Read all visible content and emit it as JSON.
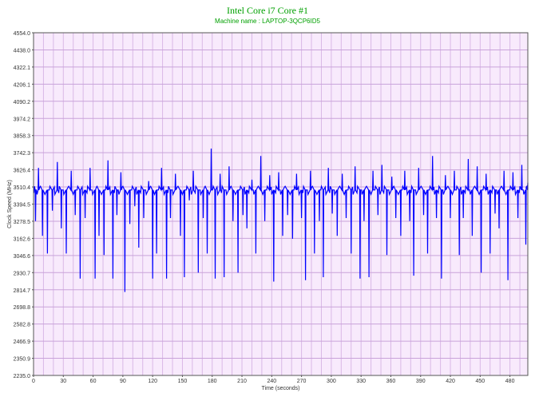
{
  "chart_data": {
    "type": "line",
    "title": "Intel Core i7 Core #1",
    "subtitle": "Machine name : LAPTOP-3QCP6ID5",
    "xlabel": "Time (seconds)",
    "ylabel": "Clock Speed (MHz)",
    "xlim": [
      0,
      498
    ],
    "ylim": [
      2235.0,
      4554.0
    ],
    "x_ticks": [
      "0",
      "30",
      "60",
      "90",
      "120",
      "150",
      "180",
      "210",
      "240",
      "270",
      "300",
      "330",
      "360",
      "390",
      "420",
      "450",
      "480"
    ],
    "y_ticks": [
      "2235.0",
      "2350.9",
      "2466.9",
      "2582.8",
      "2698.8",
      "2814.7",
      "2930.7",
      "3046.6",
      "3162.6",
      "3278.5",
      "3394.5",
      "3510.4",
      "3626.4",
      "3742.3",
      "3858.3",
      "3974.2",
      "4090.2",
      "4206.1",
      "4322.1",
      "4438.0",
      "4554.0"
    ],
    "grid": true,
    "series": [
      {
        "name": "",
        "color": "#0000ff",
        "baseline": 3490,
        "dips": [
          {
            "x": 2,
            "y": 3280
          },
          {
            "x": 5,
            "y": 3640
          },
          {
            "x": 9,
            "y": 3180
          },
          {
            "x": 14,
            "y": 3060
          },
          {
            "x": 19,
            "y": 3350
          },
          {
            "x": 24,
            "y": 3680
          },
          {
            "x": 28,
            "y": 3230
          },
          {
            "x": 33,
            "y": 3060
          },
          {
            "x": 38,
            "y": 3620
          },
          {
            "x": 42,
            "y": 3320
          },
          {
            "x": 47,
            "y": 2890
          },
          {
            "x": 52,
            "y": 3300
          },
          {
            "x": 57,
            "y": 3640
          },
          {
            "x": 62,
            "y": 2890
          },
          {
            "x": 66,
            "y": 3180
          },
          {
            "x": 71,
            "y": 3050
          },
          {
            "x": 75,
            "y": 3690
          },
          {
            "x": 80,
            "y": 2890
          },
          {
            "x": 84,
            "y": 3320
          },
          {
            "x": 88,
            "y": 3610
          },
          {
            "x": 92,
            "y": 2800
          },
          {
            "x": 97,
            "y": 3260
          },
          {
            "x": 102,
            "y": 3380
          },
          {
            "x": 106,
            "y": 3100
          },
          {
            "x": 111,
            "y": 3300
          },
          {
            "x": 116,
            "y": 3550
          },
          {
            "x": 120,
            "y": 2890
          },
          {
            "x": 124,
            "y": 3060
          },
          {
            "x": 129,
            "y": 3640
          },
          {
            "x": 134,
            "y": 2890
          },
          {
            "x": 138,
            "y": 3300
          },
          {
            "x": 143,
            "y": 3600
          },
          {
            "x": 148,
            "y": 3180
          },
          {
            "x": 152,
            "y": 2900
          },
          {
            "x": 157,
            "y": 3420
          },
          {
            "x": 161,
            "y": 3620
          },
          {
            "x": 166,
            "y": 2930
          },
          {
            "x": 171,
            "y": 3300
          },
          {
            "x": 175,
            "y": 3060
          },
          {
            "x": 179,
            "y": 3770
          },
          {
            "x": 183,
            "y": 2890
          },
          {
            "x": 188,
            "y": 3600
          },
          {
            "x": 192,
            "y": 2900
          },
          {
            "x": 197,
            "y": 3650
          },
          {
            "x": 201,
            "y": 3280
          },
          {
            "x": 206,
            "y": 2930
          },
          {
            "x": 211,
            "y": 3320
          },
          {
            "x": 215,
            "y": 3230
          },
          {
            "x": 220,
            "y": 3560
          },
          {
            "x": 224,
            "y": 3060
          },
          {
            "x": 229,
            "y": 3720
          },
          {
            "x": 233,
            "y": 3280
          },
          {
            "x": 238,
            "y": 3590
          },
          {
            "x": 242,
            "y": 2870
          },
          {
            "x": 247,
            "y": 3610
          },
          {
            "x": 251,
            "y": 3180
          },
          {
            "x": 256,
            "y": 3320
          },
          {
            "x": 261,
            "y": 3160
          },
          {
            "x": 265,
            "y": 3600
          },
          {
            "x": 270,
            "y": 3300
          },
          {
            "x": 274,
            "y": 2880
          },
          {
            "x": 279,
            "y": 3620
          },
          {
            "x": 283,
            "y": 3060
          },
          {
            "x": 288,
            "y": 3280
          },
          {
            "x": 292,
            "y": 2900
          },
          {
            "x": 297,
            "y": 3640
          },
          {
            "x": 301,
            "y": 3330
          },
          {
            "x": 306,
            "y": 3180
          },
          {
            "x": 311,
            "y": 3600
          },
          {
            "x": 315,
            "y": 3300
          },
          {
            "x": 320,
            "y": 3060
          },
          {
            "x": 324,
            "y": 3650
          },
          {
            "x": 329,
            "y": 2890
          },
          {
            "x": 333,
            "y": 3280
          },
          {
            "x": 338,
            "y": 2900
          },
          {
            "x": 342,
            "y": 3620
          },
          {
            "x": 347,
            "y": 3320
          },
          {
            "x": 351,
            "y": 3660
          },
          {
            "x": 356,
            "y": 3050
          },
          {
            "x": 361,
            "y": 3580
          },
          {
            "x": 365,
            "y": 3300
          },
          {
            "x": 370,
            "y": 3180
          },
          {
            "x": 374,
            "y": 3620
          },
          {
            "x": 379,
            "y": 3280
          },
          {
            "x": 383,
            "y": 2910
          },
          {
            "x": 388,
            "y": 3640
          },
          {
            "x": 393,
            "y": 3320
          },
          {
            "x": 397,
            "y": 3060
          },
          {
            "x": 402,
            "y": 3720
          },
          {
            "x": 406,
            "y": 3300
          },
          {
            "x": 411,
            "y": 2890
          },
          {
            "x": 415,
            "y": 3590
          },
          {
            "x": 420,
            "y": 3300
          },
          {
            "x": 424,
            "y": 3620
          },
          {
            "x": 429,
            "y": 3050
          },
          {
            "x": 433,
            "y": 3300
          },
          {
            "x": 438,
            "y": 3700
          },
          {
            "x": 442,
            "y": 3180
          },
          {
            "x": 447,
            "y": 3650
          },
          {
            "x": 451,
            "y": 2930
          },
          {
            "x": 456,
            "y": 3600
          },
          {
            "x": 460,
            "y": 3060
          },
          {
            "x": 465,
            "y": 3330
          },
          {
            "x": 469,
            "y": 3230
          },
          {
            "x": 474,
            "y": 3620
          },
          {
            "x": 478,
            "y": 2880
          },
          {
            "x": 483,
            "y": 3610
          },
          {
            "x": 488,
            "y": 3300
          },
          {
            "x": 492,
            "y": 3660
          },
          {
            "x": 496,
            "y": 3120
          },
          {
            "x": 498,
            "y": 3540
          }
        ]
      }
    ]
  }
}
